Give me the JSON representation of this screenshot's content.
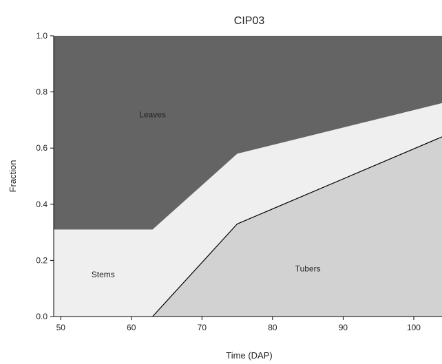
{
  "chart_data": {
    "type": "area",
    "stacked": true,
    "title": "CIP03",
    "xlabel": "Time (DAP)",
    "ylabel": "Fraction",
    "xlim": [
      49,
      104
    ],
    "ylim": [
      0,
      1
    ],
    "x_ticks": [
      50,
      60,
      70,
      80,
      90,
      100
    ],
    "y_ticks": [
      0.0,
      0.2,
      0.4,
      0.6,
      0.8,
      1.0
    ],
    "x_tick_labels": [
      "50",
      "60",
      "70",
      "80",
      "90",
      "100"
    ],
    "y_tick_labels": [
      "0.0",
      "0.2",
      "0.4",
      "0.6",
      "0.8",
      "1.0"
    ],
    "grid": false,
    "legend": "none",
    "x": [
      49,
      63,
      75,
      104
    ],
    "series": [
      {
        "name": "Tubers",
        "label_x": 85,
        "label_y": 0.16,
        "color": "#d2d2d2",
        "values": [
          0.0,
          0.0,
          0.33,
          0.64
        ]
      },
      {
        "name": "Stems",
        "label_x": 56,
        "label_y": 0.14,
        "color": "#efefef",
        "values": [
          0.31,
          0.31,
          0.25,
          0.12
        ]
      },
      {
        "name": "Leaves",
        "label_x": 63,
        "label_y": 0.71,
        "color": "#646464",
        "values": [
          0.69,
          0.69,
          0.42,
          0.24
        ]
      }
    ]
  }
}
